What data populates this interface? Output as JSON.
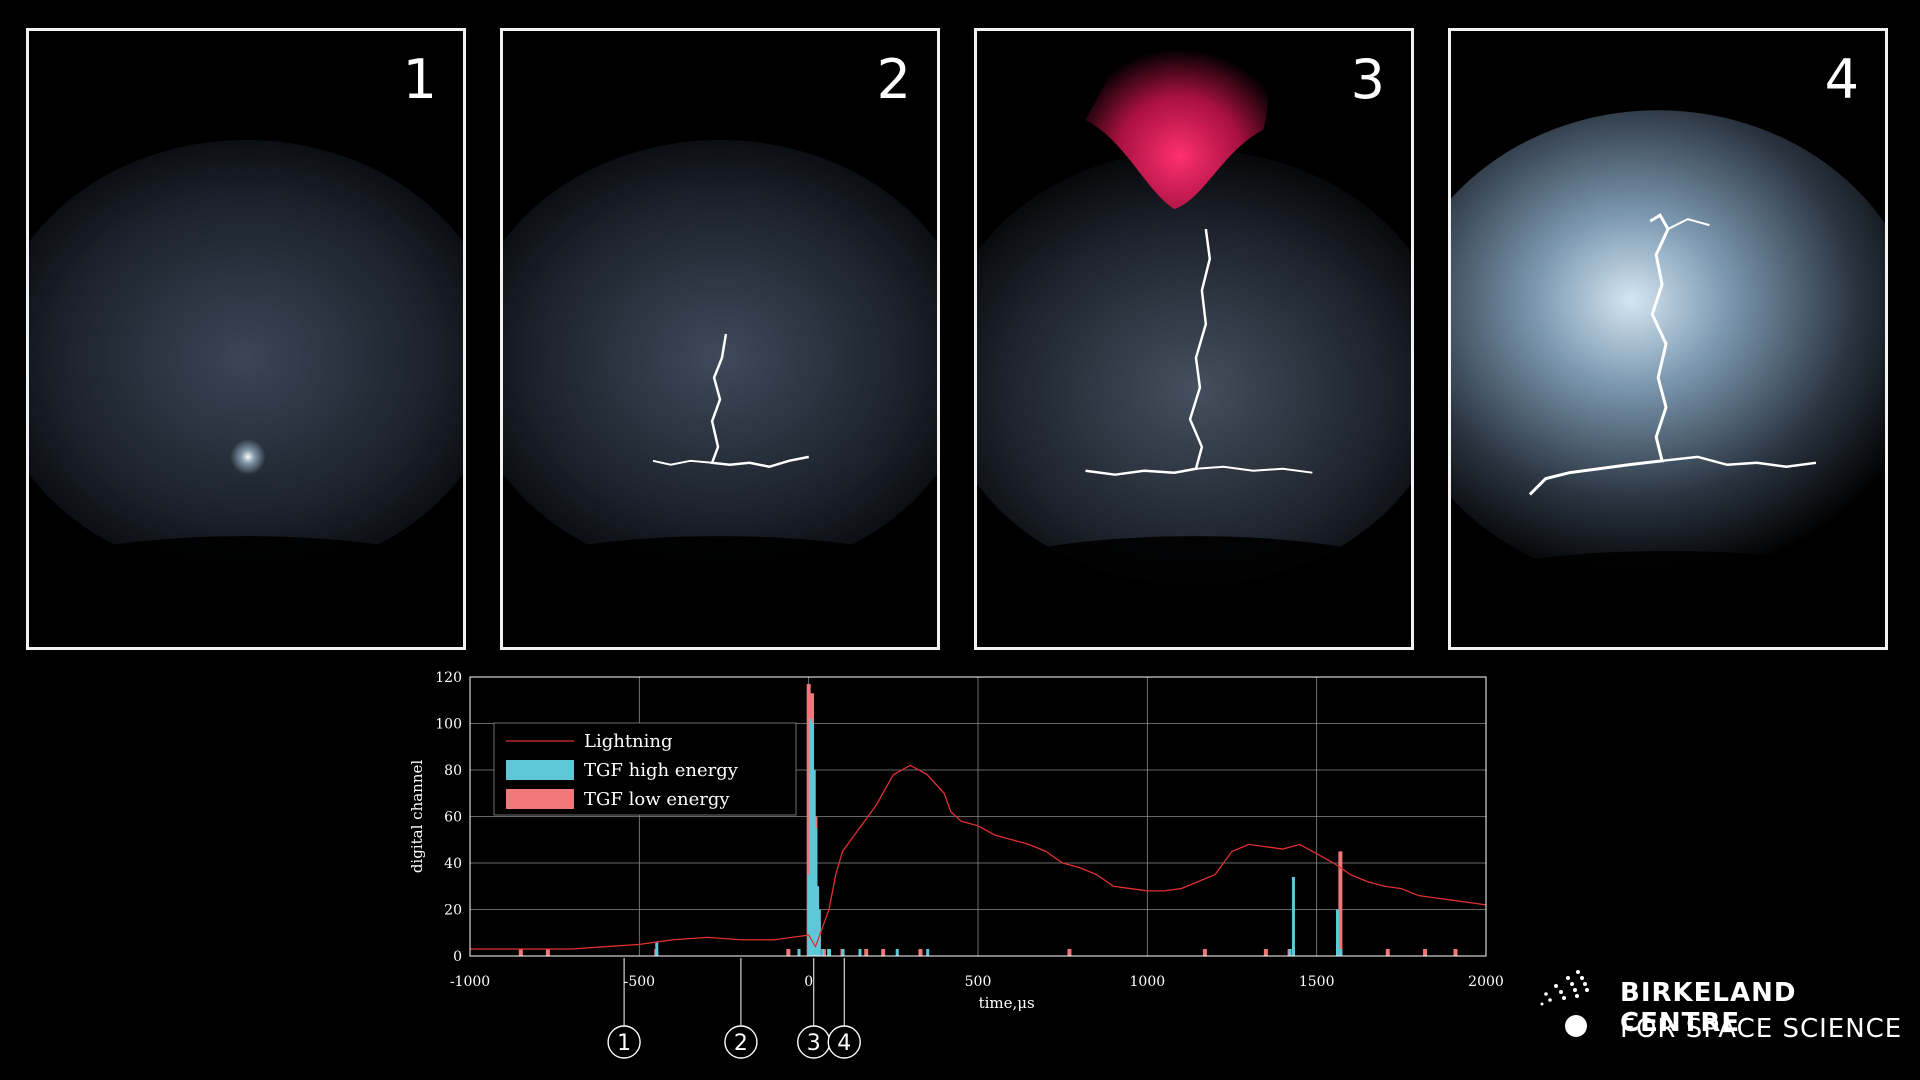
{
  "panels": [
    {
      "label": "1",
      "stage": "faint-flash"
    },
    {
      "label": "2",
      "stage": "leader-channel"
    },
    {
      "label": "3",
      "stage": "tgf-and-sprite"
    },
    {
      "label": "4",
      "stage": "full-lightning"
    }
  ],
  "colors": {
    "background": "#000000",
    "lightning_line": "#e03030",
    "tgf_high": "#5ec8d8",
    "tgf_low": "#f07878",
    "sprite": "#e8205c"
  },
  "chart_data": {
    "type": "line",
    "xlabel": "time,μs",
    "ylabel": "digital channel",
    "xlim": [
      -1000,
      2000
    ],
    "ylim": [
      0,
      120
    ],
    "x_ticks": [
      "-1000",
      "-500",
      "0",
      "500",
      "1000",
      "1500",
      "2000"
    ],
    "y_ticks": [
      "0",
      "20",
      "40",
      "60",
      "80",
      "100",
      "120"
    ],
    "grid": true,
    "legend_position": "top-left",
    "series": [
      {
        "name": "Lightning",
        "kind": "line",
        "x": [
          -1000,
          -900,
          -800,
          -700,
          -600,
          -500,
          -450,
          -400,
          -300,
          -200,
          -100,
          -50,
          0,
          20,
          40,
          60,
          80,
          100,
          150,
          200,
          250,
          300,
          350,
          400,
          420,
          450,
          500,
          550,
          600,
          650,
          700,
          750,
          800,
          850,
          900,
          950,
          1000,
          1050,
          1100,
          1150,
          1200,
          1250,
          1300,
          1350,
          1400,
          1450,
          1500,
          1550,
          1600,
          1650,
          1700,
          1750,
          1800,
          1850,
          1900,
          1950,
          2000
        ],
        "y": [
          3,
          3,
          3,
          3,
          4,
          5,
          6,
          7,
          8,
          7,
          7,
          8,
          9,
          4,
          12,
          20,
          35,
          45,
          55,
          65,
          78,
          82,
          78,
          70,
          62,
          58,
          56,
          52,
          50,
          48,
          45,
          40,
          38,
          35,
          30,
          29,
          28,
          28,
          29,
          32,
          35,
          45,
          48,
          47,
          46,
          48,
          44,
          40,
          35,
          32,
          30,
          29,
          26,
          25,
          24,
          23,
          22
        ]
      },
      {
        "name": "TGF high energy",
        "kind": "bar",
        "x": [
          -450,
          -30,
          0,
          5,
          10,
          15,
          20,
          25,
          30,
          40,
          60,
          100,
          150,
          260,
          350,
          1420,
          1430,
          1560,
          1570
        ],
        "y": [
          6,
          3,
          35,
          102,
          100,
          80,
          55,
          30,
          20,
          3,
          3,
          3,
          3,
          3,
          3,
          3,
          34,
          20,
          3
        ]
      },
      {
        "name": "TGF low energy",
        "kind": "bar",
        "x": [
          -850,
          -770,
          -450,
          -60,
          0,
          10,
          20,
          30,
          45,
          60,
          100,
          170,
          220,
          330,
          770,
          1170,
          1350,
          1420,
          1570,
          1710,
          1820,
          1910
        ],
        "y": [
          3,
          3,
          3,
          3,
          117,
          113,
          60,
          15,
          3,
          3,
          3,
          3,
          3,
          3,
          3,
          3,
          3,
          3,
          45,
          3,
          3,
          3
        ]
      }
    ],
    "stage_markers": [
      {
        "label": "1",
        "x": -545
      },
      {
        "label": "2",
        "x": -200
      },
      {
        "label": "3",
        "x": 15
      },
      {
        "label": "4",
        "x": 105
      }
    ]
  },
  "logo": {
    "line1": "BIRKELAND CENTRE",
    "line2": "FOR SPACE SCIENCE"
  }
}
